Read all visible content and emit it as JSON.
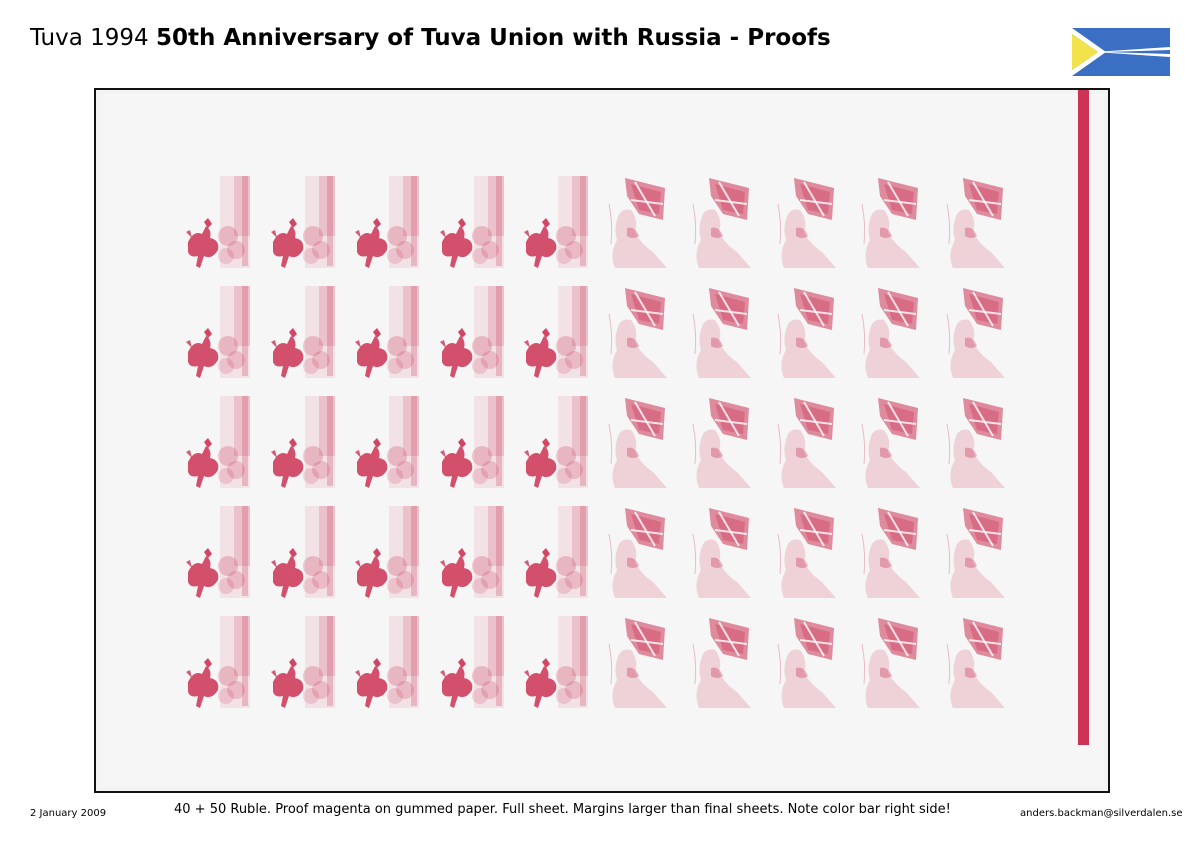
{
  "header": {
    "title_regular": "Tuva 1994 ",
    "title_bold": "50th Anniversary of Tuva Union with Russia - Proofs"
  },
  "flag": {
    "icon": "tuva-flag-icon",
    "colors": {
      "blue": "#3a6fc4",
      "white": "#ffffff",
      "yellow": "#f2e34a"
    }
  },
  "sheet": {
    "rows": 5,
    "left_block_columns": 5,
    "right_block_columns": 5,
    "left_stamp_icon": "horseman-stamp-icon",
    "right_stamp_icon": "portrait-flag-stamp-icon",
    "proof_color": "#cc3355",
    "color_bar": "#cc3355"
  },
  "footer": {
    "date": "2 January 2009",
    "caption": "40 + 50 Ruble. Proof magenta on gummed paper. Full sheet. Margins larger than final sheets. Note color bar right side!",
    "email": "anders.backman@silverdalen.se"
  }
}
